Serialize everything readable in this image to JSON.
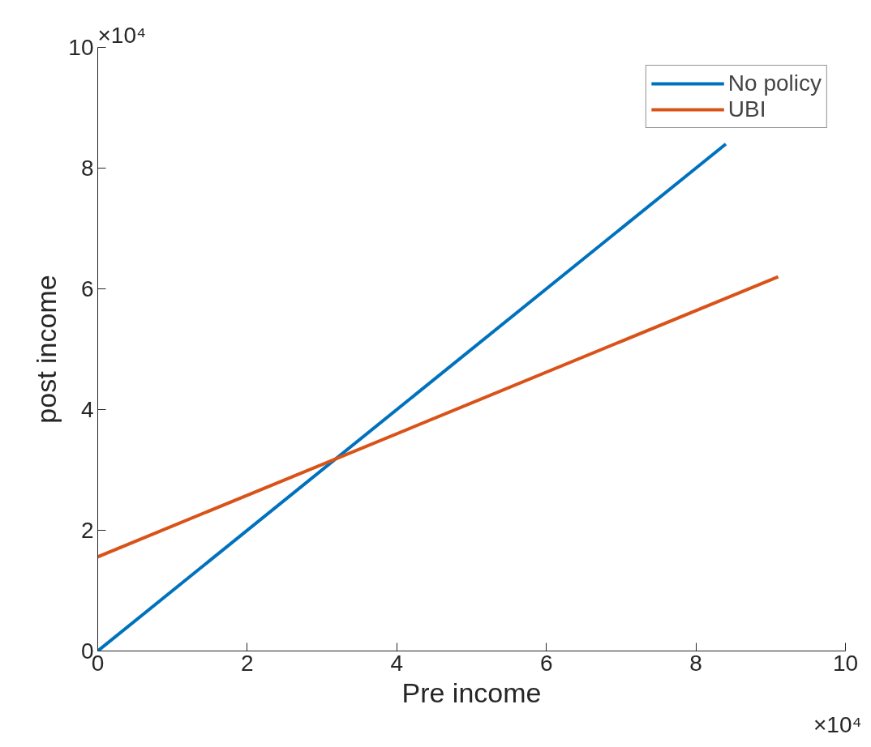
{
  "chart_data": {
    "type": "line",
    "xlabel": "Pre income",
    "ylabel": "post income",
    "xlim": [
      0,
      10
    ],
    "ylim": [
      0,
      10
    ],
    "xticks": [
      0,
      2,
      4,
      6,
      8,
      10
    ],
    "yticks": [
      0,
      2,
      4,
      6,
      8,
      10
    ],
    "annotations": [
      "×10⁴",
      "×10⁴"
    ],
    "series": [
      {
        "name": "No policy",
        "color": "#0072bd",
        "x": [
          0,
          8.4
        ],
        "values": [
          0,
          8.4
        ]
      },
      {
        "name": "UBI",
        "color": "#d95319",
        "x": [
          0,
          9.1
        ],
        "values": [
          1.56,
          6.2
        ]
      }
    ],
    "legend": "top right",
    "grid": false,
    "line_style": "solid",
    "marker": "none"
  }
}
